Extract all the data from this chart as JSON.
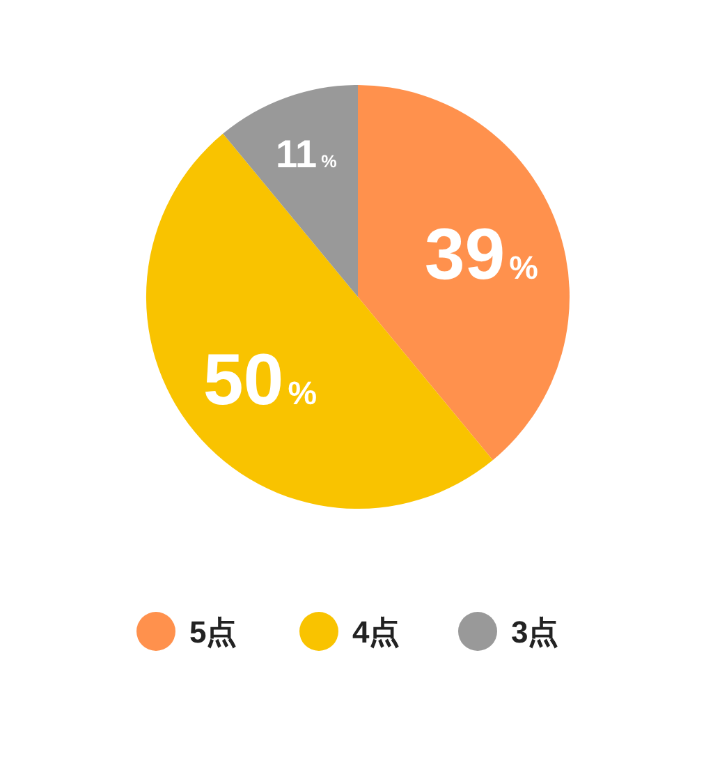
{
  "chart_data": {
    "type": "pie",
    "categories": [
      "5点",
      "4点",
      "3点"
    ],
    "values": [
      39,
      50,
      11
    ],
    "colors": [
      "#ff914d",
      "#f9c300",
      "#999999"
    ],
    "value_labels": [
      "39%",
      "50%",
      "11%"
    ],
    "legend": "bottom"
  }
}
